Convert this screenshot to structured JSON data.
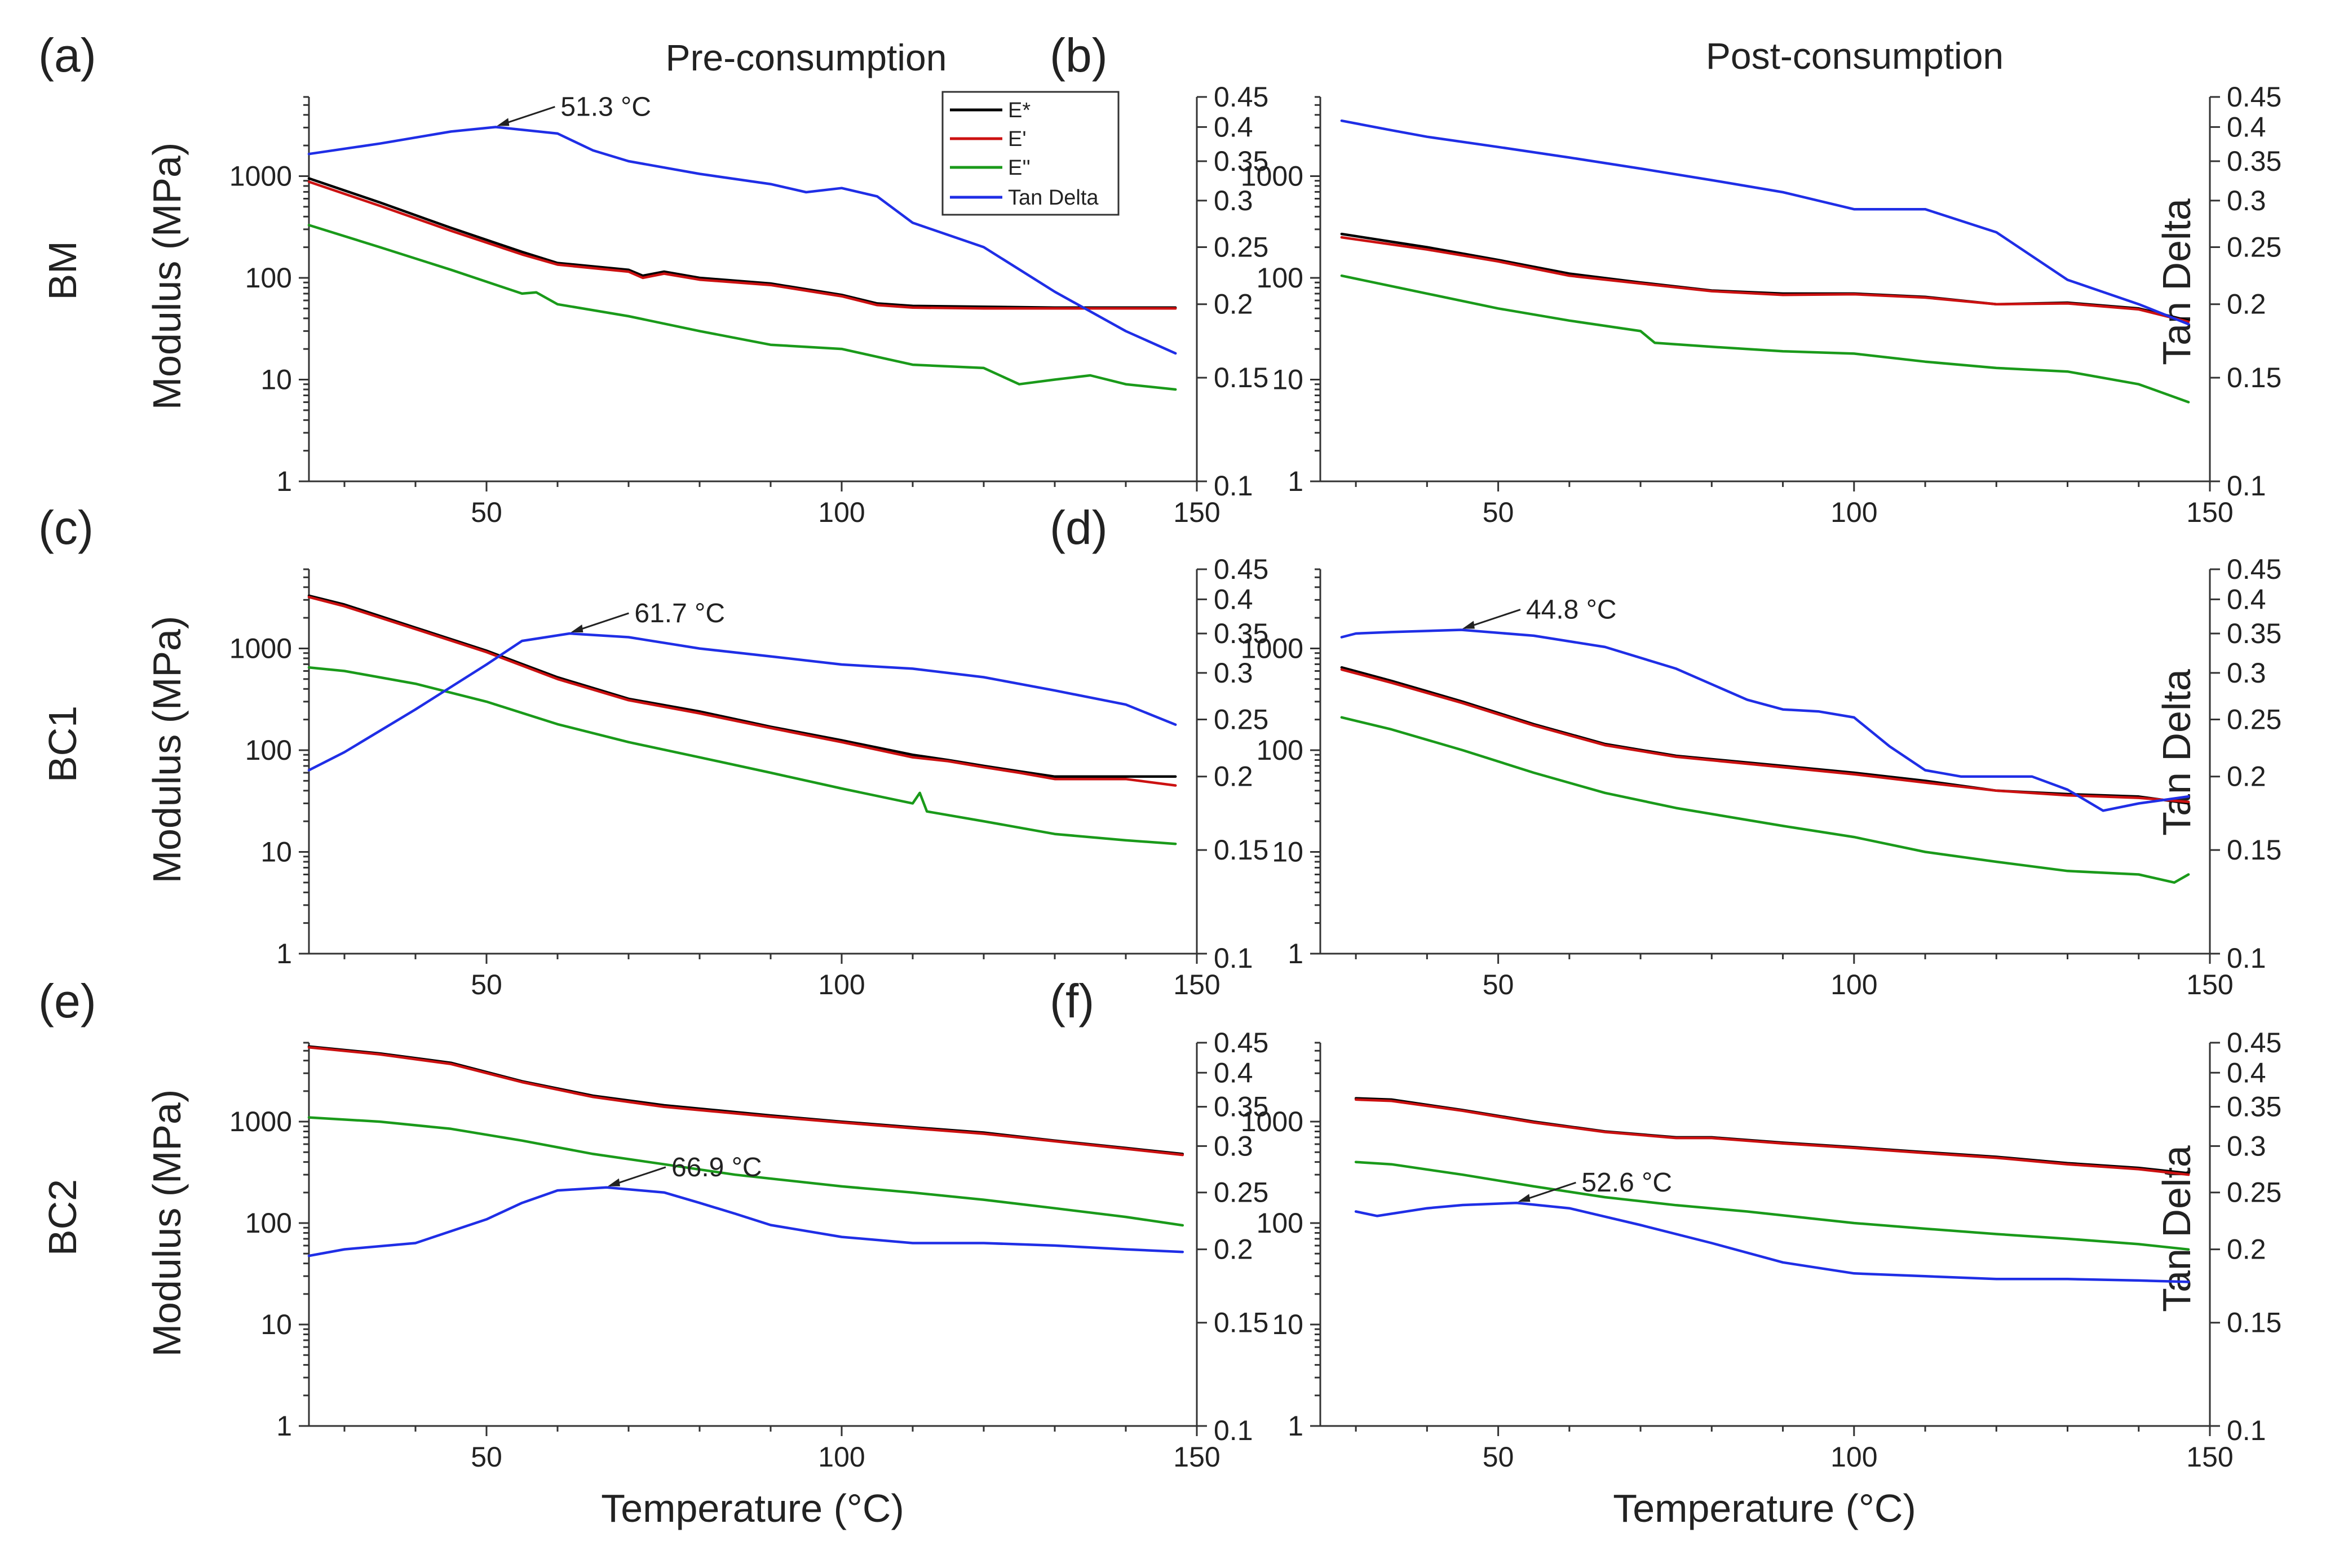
{
  "colors": {
    "E_star": "#000000",
    "E_prime": "#cc1111",
    "E_double_prime": "#1a9a1a",
    "tan_delta": "#1f2ee6"
  },
  "figure": {
    "column_titles": [
      "Pre-consumption",
      "Post-consumption"
    ],
    "row_labels": [
      "BM",
      "BC1",
      "BC2"
    ],
    "xlabel": "Temperature (°C)",
    "ylabel_left": "Modulus (MPa)",
    "ylabel_right": "Tan Delta",
    "legend": [
      "E*",
      "E'",
      "E''",
      "Tan Delta"
    ]
  },
  "chart_data": [
    {
      "panel": "(a)",
      "type": "line",
      "xlim": [
        25,
        150
      ],
      "x_ticks": [
        "50",
        "100",
        "150"
      ],
      "y_left_scale": "log",
      "y_left_lim": [
        1,
        6000
      ],
      "y_left_ticks": [
        "1",
        "10",
        "100",
        "1000"
      ],
      "y_right_scale": "log",
      "y_right_lim": [
        0.1,
        0.45
      ],
      "y_right_ticks": [
        "0.1",
        "0.15",
        "0.2",
        "0.25",
        "0.3",
        "0.35",
        "0.4",
        "0.45"
      ],
      "annotation": {
        "text": "51.3 °C",
        "x": 51.3
      },
      "series": [
        {
          "name": "E*",
          "axis": "left",
          "x": [
            25,
            35,
            45,
            55,
            60,
            70,
            72,
            75,
            80,
            90,
            100,
            105,
            110,
            120,
            130,
            140,
            147
          ],
          "values": [
            950,
            550,
            310,
            180,
            140,
            120,
            105,
            115,
            100,
            88,
            68,
            56,
            53,
            52,
            51,
            51,
            51
          ]
        },
        {
          "name": "E'",
          "axis": "left",
          "x": [
            25,
            35,
            45,
            55,
            60,
            70,
            72,
            75,
            80,
            90,
            100,
            105,
            110,
            120,
            130,
            140,
            147
          ],
          "values": [
            880,
            510,
            290,
            170,
            135,
            115,
            100,
            110,
            96,
            85,
            66,
            54,
            51,
            50,
            50,
            50,
            50
          ]
        },
        {
          "name": "E''",
          "axis": "left",
          "x": [
            25,
            35,
            45,
            55,
            57,
            60,
            70,
            80,
            90,
            100,
            110,
            120,
            125,
            130,
            135,
            140,
            147
          ],
          "values": [
            330,
            200,
            120,
            70,
            72,
            55,
            42,
            30,
            22,
            20,
            14,
            13,
            9,
            10,
            11,
            9,
            8
          ]
        },
        {
          "name": "Tan Delta",
          "axis": "right",
          "x": [
            25,
            35,
            45,
            51.3,
            60,
            65,
            70,
            80,
            90,
            95,
            100,
            105,
            110,
            120,
            130,
            140,
            147
          ],
          "values": [
            0.36,
            0.375,
            0.393,
            0.4,
            0.39,
            0.365,
            0.35,
            0.333,
            0.32,
            0.31,
            0.315,
            0.305,
            0.275,
            0.25,
            0.21,
            0.18,
            0.165
          ]
        }
      ]
    },
    {
      "panel": "(b)",
      "type": "line",
      "xlim": [
        25,
        150
      ],
      "x_ticks": [
        "50",
        "100",
        "150"
      ],
      "y_left_scale": "log",
      "y_left_lim": [
        1,
        6000
      ],
      "y_left_ticks": [
        "1",
        "10",
        "100",
        "1000"
      ],
      "y_right_scale": "log",
      "y_right_lim": [
        0.1,
        0.45
      ],
      "y_right_ticks": [
        "0.1",
        "0.15",
        "0.2",
        "0.25",
        "0.3",
        "0.35",
        "0.4",
        "0.45"
      ],
      "series": [
        {
          "name": "E*",
          "axis": "left",
          "x": [
            28,
            40,
            50,
            60,
            70,
            80,
            90,
            100,
            110,
            120,
            130,
            140,
            147
          ],
          "values": [
            270,
            200,
            150,
            110,
            90,
            75,
            70,
            70,
            65,
            55,
            57,
            50,
            38
          ]
        },
        {
          "name": "E'",
          "axis": "left",
          "x": [
            28,
            40,
            50,
            60,
            70,
            80,
            90,
            100,
            110,
            120,
            130,
            140,
            147
          ],
          "values": [
            250,
            190,
            145,
            105,
            88,
            74,
            68,
            69,
            64,
            55,
            56,
            49,
            37
          ]
        },
        {
          "name": "E''",
          "axis": "left",
          "x": [
            28,
            40,
            50,
            60,
            70,
            72,
            80,
            90,
            100,
            110,
            120,
            130,
            140,
            147
          ],
          "values": [
            105,
            70,
            50,
            38,
            30,
            23,
            21,
            19,
            18,
            15,
            13,
            12,
            9,
            6
          ]
        },
        {
          "name": "Tan Delta",
          "axis": "right",
          "x": [
            28,
            35,
            40,
            50,
            60,
            70,
            80,
            90,
            100,
            110,
            120,
            130,
            140,
            147
          ],
          "values": [
            0.41,
            0.395,
            0.385,
            0.37,
            0.355,
            0.34,
            0.325,
            0.31,
            0.29,
            0.29,
            0.265,
            0.22,
            0.2,
            0.185
          ]
        }
      ]
    },
    {
      "panel": "(c)",
      "type": "line",
      "xlim": [
        25,
        150
      ],
      "x_ticks": [
        "50",
        "100",
        "150"
      ],
      "y_left_scale": "log",
      "y_left_lim": [
        1,
        6000
      ],
      "y_left_ticks": [
        "1",
        "10",
        "100",
        "1000"
      ],
      "y_right_scale": "log",
      "y_right_lim": [
        0.1,
        0.45
      ],
      "y_right_ticks": [
        "0.1",
        "0.15",
        "0.2",
        "0.25",
        "0.3",
        "0.35",
        "0.4",
        "0.45"
      ],
      "annotation": {
        "text": "61.7 °C",
        "x": 61.7
      },
      "series": [
        {
          "name": "E*",
          "axis": "left",
          "x": [
            25,
            30,
            40,
            50,
            60,
            70,
            80,
            90,
            100,
            110,
            115,
            120,
            125,
            130,
            140,
            147
          ],
          "values": [
            3300,
            2700,
            1600,
            950,
            520,
            320,
            240,
            170,
            125,
            90,
            80,
            70,
            62,
            55,
            55,
            55
          ]
        },
        {
          "name": "E'",
          "axis": "left",
          "x": [
            25,
            30,
            40,
            50,
            60,
            70,
            80,
            90,
            100,
            110,
            115,
            120,
            125,
            130,
            140,
            147
          ],
          "values": [
            3200,
            2600,
            1550,
            920,
            500,
            310,
            230,
            165,
            120,
            85,
            78,
            68,
            60,
            52,
            52,
            45
          ]
        },
        {
          "name": "E''",
          "axis": "left",
          "x": [
            25,
            30,
            40,
            50,
            60,
            70,
            80,
            90,
            100,
            110,
            111,
            112,
            120,
            130,
            140,
            147
          ],
          "values": [
            650,
            600,
            450,
            300,
            180,
            120,
            85,
            60,
            42,
            30,
            38,
            25,
            20,
            15,
            13,
            12
          ]
        },
        {
          "name": "Tan Delta",
          "axis": "right",
          "x": [
            25,
            30,
            40,
            50,
            55,
            61.7,
            70,
            80,
            90,
            100,
            110,
            120,
            130,
            140,
            147
          ],
          "values": [
            0.205,
            0.22,
            0.26,
            0.31,
            0.34,
            0.35,
            0.345,
            0.33,
            0.32,
            0.31,
            0.305,
            0.295,
            0.28,
            0.265,
            0.245
          ]
        }
      ]
    },
    {
      "panel": "(d)",
      "type": "line",
      "xlim": [
        25,
        150
      ],
      "x_ticks": [
        "50",
        "100",
        "150"
      ],
      "y_left_scale": "log",
      "y_left_lim": [
        1,
        6000
      ],
      "y_left_ticks": [
        "1",
        "10",
        "100",
        "1000"
      ],
      "y_right_scale": "log",
      "y_right_lim": [
        0.1,
        0.45
      ],
      "y_right_ticks": [
        "0.1",
        "0.15",
        "0.2",
        "0.25",
        "0.3",
        "0.35",
        "0.4",
        "0.45"
      ],
      "annotation": {
        "text": "44.8 °C",
        "x": 44.8
      },
      "series": [
        {
          "name": "E*",
          "axis": "left",
          "x": [
            28,
            35,
            45,
            55,
            65,
            75,
            90,
            100,
            110,
            120,
            130,
            140,
            147
          ],
          "values": [
            650,
            480,
            300,
            180,
            115,
            88,
            70,
            60,
            50,
            40,
            37,
            35,
            30
          ]
        },
        {
          "name": "E'",
          "axis": "left",
          "x": [
            28,
            35,
            45,
            55,
            65,
            75,
            90,
            100,
            110,
            120,
            130,
            140,
            147
          ],
          "values": [
            620,
            460,
            290,
            175,
            112,
            86,
            68,
            58,
            48,
            40,
            36,
            34,
            31
          ]
        },
        {
          "name": "E''",
          "axis": "left",
          "x": [
            28,
            35,
            45,
            55,
            65,
            75,
            90,
            100,
            110,
            120,
            130,
            140,
            145,
            147
          ],
          "values": [
            210,
            160,
            100,
            60,
            38,
            27,
            18,
            14,
            10,
            8,
            6.5,
            6,
            5,
            6
          ]
        },
        {
          "name": "Tan Delta",
          "axis": "right",
          "x": [
            28,
            30,
            35,
            44.8,
            55,
            65,
            75,
            85,
            90,
            95,
            100,
            105,
            110,
            115,
            120,
            125,
            130,
            135,
            140,
            147
          ],
          "values": [
            0.345,
            0.35,
            0.352,
            0.355,
            0.347,
            0.332,
            0.305,
            0.27,
            0.26,
            0.258,
            0.252,
            0.225,
            0.205,
            0.2,
            0.2,
            0.2,
            0.19,
            0.175,
            0.18,
            0.185
          ]
        }
      ]
    },
    {
      "panel": "(e)",
      "type": "line",
      "xlim": [
        25,
        150
      ],
      "x_ticks": [
        "50",
        "100",
        "150"
      ],
      "y_left_scale": "log",
      "y_left_lim": [
        1,
        6000
      ],
      "y_left_ticks": [
        "1",
        "10",
        "100",
        "1000"
      ],
      "y_right_scale": "log",
      "y_right_lim": [
        0.1,
        0.45
      ],
      "y_right_ticks": [
        "0.1",
        "0.15",
        "0.2",
        "0.25",
        "0.3",
        "0.35",
        "0.4",
        "0.45"
      ],
      "annotation": {
        "text": "66.9 °C",
        "x": 66.9
      },
      "series": [
        {
          "name": "E*",
          "axis": "left",
          "x": [
            25,
            35,
            45,
            55,
            65,
            75,
            90,
            100,
            110,
            120,
            130,
            140,
            148
          ],
          "values": [
            5500,
            4700,
            3800,
            2500,
            1800,
            1450,
            1150,
            1000,
            880,
            780,
            650,
            550,
            480
          ]
        },
        {
          "name": "E'",
          "axis": "left",
          "x": [
            25,
            35,
            45,
            55,
            65,
            75,
            90,
            100,
            110,
            120,
            130,
            140,
            148
          ],
          "values": [
            5400,
            4600,
            3700,
            2450,
            1750,
            1400,
            1120,
            980,
            860,
            760,
            640,
            540,
            470
          ]
        },
        {
          "name": "E''",
          "axis": "left",
          "x": [
            25,
            35,
            45,
            55,
            65,
            75,
            85,
            100,
            110,
            120,
            130,
            140,
            148
          ],
          "values": [
            1100,
            1000,
            850,
            650,
            480,
            380,
            300,
            230,
            200,
            170,
            140,
            115,
            95
          ]
        },
        {
          "name": "Tan Delta",
          "axis": "right",
          "x": [
            25,
            30,
            40,
            50,
            55,
            60,
            66.9,
            75,
            80,
            85,
            90,
            100,
            110,
            120,
            130,
            140,
            148
          ],
          "values": [
            0.195,
            0.2,
            0.205,
            0.225,
            0.24,
            0.252,
            0.255,
            0.25,
            0.24,
            0.23,
            0.22,
            0.21,
            0.205,
            0.205,
            0.203,
            0.2,
            0.198
          ]
        }
      ]
    },
    {
      "panel": "(f)",
      "type": "line",
      "xlim": [
        25,
        150
      ],
      "x_ticks": [
        "50",
        "100",
        "150"
      ],
      "y_left_scale": "log",
      "y_left_lim": [
        1,
        6000
      ],
      "y_left_ticks": [
        "1",
        "10",
        "100",
        "1000"
      ],
      "y_right_scale": "log",
      "y_right_lim": [
        0.1,
        0.45
      ],
      "y_right_ticks": [
        "0.1",
        "0.15",
        "0.2",
        "0.25",
        "0.3",
        "0.35",
        "0.4",
        "0.45"
      ],
      "annotation": {
        "text": "52.6 °C",
        "x": 52.6
      },
      "series": [
        {
          "name": "E*",
          "axis": "left",
          "x": [
            30,
            35,
            45,
            55,
            65,
            75,
            80,
            90,
            100,
            110,
            120,
            130,
            140,
            147
          ],
          "values": [
            1700,
            1650,
            1300,
            1000,
            800,
            700,
            700,
            620,
            560,
            500,
            450,
            390,
            350,
            310
          ]
        },
        {
          "name": "E'",
          "axis": "left",
          "x": [
            30,
            35,
            45,
            55,
            65,
            75,
            80,
            90,
            100,
            110,
            120,
            130,
            140,
            147
          ],
          "values": [
            1650,
            1600,
            1280,
            980,
            790,
            690,
            690,
            610,
            550,
            490,
            440,
            380,
            340,
            300
          ]
        },
        {
          "name": "E''",
          "axis": "left",
          "x": [
            30,
            35,
            45,
            55,
            65,
            75,
            85,
            100,
            110,
            120,
            130,
            140,
            147
          ],
          "values": [
            400,
            380,
            300,
            230,
            180,
            150,
            130,
            100,
            88,
            78,
            70,
            62,
            55
          ]
        },
        {
          "name": "Tan Delta",
          "axis": "right",
          "x": [
            30,
            33,
            40,
            45,
            52.6,
            60,
            70,
            80,
            90,
            100,
            110,
            120,
            130,
            140,
            147
          ],
          "values": [
            0.232,
            0.228,
            0.235,
            0.238,
            0.24,
            0.235,
            0.22,
            0.205,
            0.19,
            0.182,
            0.18,
            0.178,
            0.178,
            0.177,
            0.176
          ]
        }
      ]
    }
  ]
}
